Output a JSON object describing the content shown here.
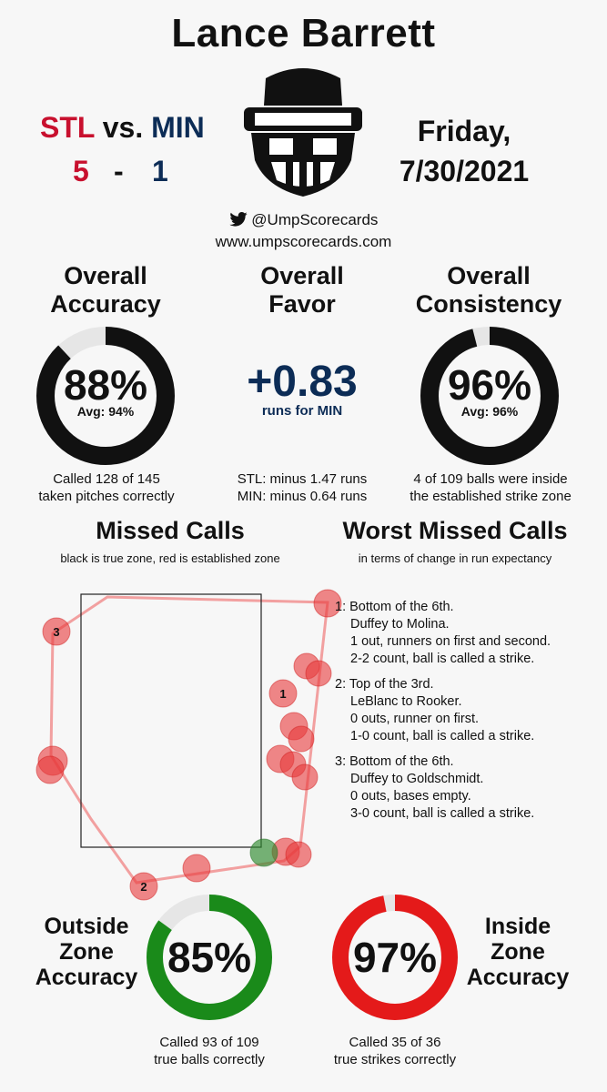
{
  "umpire": "Lance Barrett",
  "game": {
    "away_team": "STL",
    "vs": "vs.",
    "home_team": "MIN",
    "away_score": "5",
    "dash": "-",
    "home_score": "1",
    "day": "Friday,",
    "date": "7/30/2021"
  },
  "social": {
    "handle": "@UmpScorecards",
    "website": "www.umpscorecards.com"
  },
  "overall_accuracy": {
    "title_line1": "Overall",
    "title_line2": "Accuracy",
    "value": "88%",
    "fraction": 0.88,
    "avg": "Avg: 94%",
    "caption_line1": "Called 128 of 145",
    "caption_line2": "taken pitches correctly"
  },
  "overall_favor": {
    "title_line1": "Overall",
    "title_line2": "Favor",
    "value": "+0.83",
    "unit": "runs for MIN",
    "caption_line1": "STL: minus 1.47 runs",
    "caption_line2": "MIN: minus 0.64 runs"
  },
  "overall_consistency": {
    "title_line1": "Overall",
    "title_line2": "Consistency",
    "value": "96%",
    "fraction": 0.96,
    "avg": "Avg: 96%",
    "caption_line1": "4 of 109 balls were inside",
    "caption_line2": "the established strike zone"
  },
  "missed_calls": {
    "title": "Missed Calls",
    "subtitle": "black is true zone, red is established zone"
  },
  "worst_missed_calls": {
    "title": "Worst Missed Calls",
    "subtitle": "in terms of change in run expectancy",
    "items": [
      {
        "label": "1: Bottom of the 6th.",
        "lines": [
          "Duffey to Molina.",
          "1 out, runners on first and second.",
          "2-2 count, ball is called a strike."
        ]
      },
      {
        "label": "2: Top of the 3rd.",
        "lines": [
          "LeBlanc to Rooker.",
          "0 outs, runner on first.",
          "1-0 count, ball is called a strike."
        ]
      },
      {
        "label": "3: Bottom of the 6th.",
        "lines": [
          "Duffey to Goldschmidt.",
          "0 outs, bases empty.",
          "3-0 count, ball is called a strike."
        ]
      }
    ]
  },
  "outside_zone": {
    "title_line1": "Outside",
    "title_line2": "Zone",
    "title_line3": "Accuracy",
    "value": "85%",
    "fraction": 0.85,
    "caption_line1": "Called 93 of 109",
    "caption_line2": "true balls correctly",
    "color": "#1a8a1a"
  },
  "inside_zone": {
    "title_line1": "Inside",
    "title_line2": "Zone",
    "title_line3": "Accuracy",
    "value": "97%",
    "fraction": 0.97,
    "caption_line1": "Called 35 of 36",
    "caption_line2": "true strikes correctly",
    "color": "#e41a1a"
  },
  "colors": {
    "away": "#c8102e",
    "home": "#0c2c56",
    "missed_pitch": "#e8383a",
    "correct_pitch": "#2e8b2e"
  },
  "pitch_labels": [
    "1",
    "2",
    "3"
  ]
}
